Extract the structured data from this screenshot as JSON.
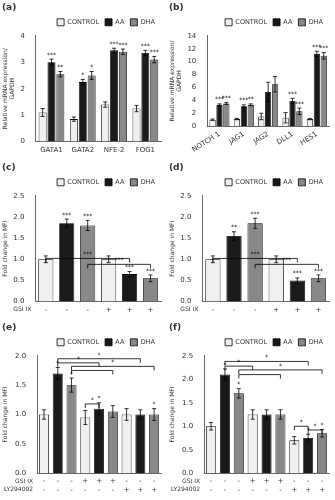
{
  "chart_data": [
    {
      "type": "bar",
      "title": "(a)",
      "categories": [
        "GATA1",
        "GATA2",
        "NFE-2",
        "FOG1"
      ],
      "series": [
        {
          "name": "CONTROL",
          "color": "#f0f0f0",
          "values": [
            1.1,
            0.85,
            1.4,
            1.25
          ],
          "errors": [
            0.15,
            0.08,
            0.1,
            0.12
          ]
        },
        {
          "name": "AA",
          "color": "#1a1a1a",
          "values": [
            3.0,
            2.25,
            3.45,
            3.35
          ],
          "errors": [
            0.12,
            0.1,
            0.08,
            0.1
          ],
          "stars": [
            "***",
            "*",
            "***",
            "***"
          ]
        },
        {
          "name": "DHA",
          "color": "#888888",
          "values": [
            2.55,
            2.5,
            3.4,
            3.1
          ],
          "errors": [
            0.1,
            0.15,
            0.1,
            0.12
          ],
          "stars": [
            "**",
            "*",
            "***",
            "***"
          ]
        }
      ],
      "ylabel": "Relative mRNA expression/\nGAPDH",
      "ylim": [
        0,
        4
      ],
      "yticks": [
        0,
        1,
        2,
        3,
        4
      ],
      "grid": false,
      "legend": "upper right"
    },
    {
      "type": "bar",
      "title": "(b)",
      "categories": [
        "NOTCH 1",
        "JAG1",
        "JAG2",
        "DLL1",
        "HES1"
      ],
      "series": [
        {
          "name": "CONTROL",
          "color": "#f0f0f0",
          "values": [
            1.0,
            1.1,
            1.5,
            1.3,
            1.1
          ],
          "errors": [
            0.1,
            0.1,
            0.5,
            0.8,
            0.1
          ]
        },
        {
          "name": "AA",
          "color": "#1a1a1a",
          "values": [
            3.3,
            3.1,
            5.3,
            3.9,
            11.2
          ],
          "errors": [
            0.15,
            0.2,
            1.5,
            0.4,
            0.4
          ],
          "stars": [
            "***",
            "***",
            null,
            "***",
            "***"
          ]
        },
        {
          "name": "DHA",
          "color": "#888888",
          "values": [
            3.5,
            3.3,
            6.5,
            2.3,
            10.9
          ],
          "errors": [
            0.15,
            0.15,
            1.2,
            0.5,
            0.5
          ],
          "stars": [
            "***",
            "**",
            null,
            "***",
            "***"
          ]
        }
      ],
      "ylabel": "Relative mRNA expression/\nGAPDH",
      "ylim": [
        0,
        14
      ],
      "yticks": [
        0,
        2,
        4,
        6,
        8,
        10,
        12,
        14
      ],
      "grid": false,
      "legend": "upper right"
    },
    {
      "type": "bar",
      "title": "(c)",
      "categories": [
        "-",
        "-",
        "-",
        "+",
        "+",
        "+"
      ],
      "category_rows": [
        "GSI IX"
      ],
      "series": [
        {
          "name": "CONTROL",
          "color": "#f0f0f0",
          "values": [
            1.0,
            null,
            null,
            1.0,
            null,
            null
          ],
          "errors": [
            0.08,
            null,
            null,
            0.08,
            null,
            null
          ]
        },
        {
          "name": "AA",
          "color": "#1a1a1a",
          "values": [
            null,
            1.85,
            null,
            null,
            0.65,
            null
          ],
          "errors": [
            null,
            0.1,
            null,
            null,
            0.06,
            null
          ],
          "stars": [
            null,
            "***",
            null,
            null,
            "***",
            null
          ]
        },
        {
          "name": "DHA",
          "color": "#888888",
          "values": [
            null,
            null,
            1.8,
            null,
            null,
            0.55
          ],
          "errors": [
            null,
            null,
            0.12,
            null,
            null,
            0.08
          ],
          "stars": [
            null,
            null,
            "***",
            null,
            null,
            "***"
          ]
        }
      ],
      "brackets": [
        {
          "from": 0,
          "to": 4,
          "y": 1.02,
          "text": "***"
        },
        {
          "from": 2,
          "to": 5,
          "y": 0.88,
          "text": "***"
        }
      ],
      "ylabel": "Fold change in MFI",
      "ylim": [
        0,
        2.5
      ],
      "yticks": [
        {
          "value": 0,
          "label": "0.0"
        },
        0.5,
        {
          "value": 1,
          "label": "1.0"
        },
        1.5,
        {
          "value": 2,
          "label": "2.0"
        },
        2.5
      ],
      "grid": false,
      "legend": "upper right"
    },
    {
      "type": "bar",
      "title": "(d)",
      "categories": [
        "-",
        "-",
        "-",
        "+",
        "+",
        "+"
      ],
      "category_rows": [
        "GSI IX"
      ],
      "series": [
        {
          "name": "CONTROL",
          "color": "#f0f0f0",
          "values": [
            1.0,
            null,
            null,
            1.0,
            null,
            null
          ],
          "errors": [
            0.08,
            null,
            null,
            0.08,
            null,
            null
          ]
        },
        {
          "name": "AA",
          "color": "#1a1a1a",
          "values": [
            null,
            1.55,
            null,
            null,
            0.5,
            null
          ],
          "errors": [
            null,
            0.1,
            null,
            null,
            0.06,
            null
          ],
          "stars": [
            null,
            "**",
            null,
            null,
            "***",
            null
          ]
        },
        {
          "name": "DHA",
          "color": "#888888",
          "values": [
            null,
            null,
            1.85,
            null,
            null,
            0.55
          ],
          "errors": [
            null,
            null,
            0.12,
            null,
            null,
            0.08
          ],
          "stars": [
            null,
            null,
            "***",
            null,
            null,
            "***"
          ]
        }
      ],
      "brackets": [
        {
          "from": 0,
          "to": 4,
          "y": 1.02,
          "text": "***"
        },
        {
          "from": 2,
          "to": 5,
          "y": 0.88,
          "text": "***"
        }
      ],
      "ylabel": "Fold change in MFI",
      "ylim": [
        0,
        2.5
      ],
      "yticks": [
        {
          "value": 0,
          "label": "0.0"
        },
        0.5,
        {
          "value": 1,
          "label": "1.0"
        },
        1.5,
        {
          "value": 2,
          "label": "2.0"
        },
        2.5
      ],
      "grid": false,
      "legend": "upper right"
    },
    {
      "type": "bar",
      "title": "(e)",
      "categories": [
        [
          "-",
          "-"
        ],
        [
          "-",
          "-"
        ],
        [
          "-",
          "-"
        ],
        [
          "+",
          "-"
        ],
        [
          "+",
          "-"
        ],
        [
          "+",
          "-"
        ],
        [
          "-",
          "+"
        ],
        [
          "-",
          "+"
        ],
        [
          "-",
          "+"
        ]
      ],
      "category_rows": [
        "GSI IX",
        "LY294002"
      ],
      "series": [
        {
          "name": "CONTROL",
          "color": "#f0f0f0",
          "values": [
            1.0,
            null,
            null,
            0.95,
            null,
            null,
            1.0,
            null,
            null
          ],
          "errors": [
            0.08,
            null,
            null,
            0.12,
            null,
            null,
            0.1,
            null,
            null
          ]
        },
        {
          "name": "AA",
          "color": "#1a1a1a",
          "values": [
            null,
            1.7,
            null,
            null,
            1.1,
            null,
            null,
            1.0,
            null
          ],
          "errors": [
            null,
            0.1,
            null,
            null,
            0.1,
            null,
            null,
            0.08,
            null
          ],
          "stars": [
            null,
            "*",
            null,
            null,
            "*",
            null,
            null,
            null,
            null
          ]
        },
        {
          "name": "DHA",
          "color": "#888888",
          "values": [
            null,
            null,
            1.5,
            null,
            null,
            1.05,
            null,
            null,
            1.0
          ],
          "errors": [
            null,
            null,
            0.12,
            null,
            null,
            0.1,
            null,
            null,
            0.1
          ],
          "stars": [
            null,
            null,
            "*",
            null,
            null,
            null,
            null,
            null,
            "*"
          ]
        }
      ],
      "brackets": [
        {
          "from": 1,
          "to": 4,
          "y": 1.88,
          "text": "*"
        },
        {
          "from": 2,
          "to": 5,
          "y": 1.75
        },
        {
          "from": 1,
          "to": 7,
          "y": 1.95,
          "text": "*"
        },
        {
          "from": 2,
          "to": 8,
          "y": 1.82,
          "text": "*"
        },
        {
          "from": 3,
          "to": 4,
          "y": 1.18,
          "text": "*"
        }
      ],
      "ylabel": "Fold change in MFI",
      "ylim": [
        0,
        2.0
      ],
      "yticks": [
        {
          "value": 0,
          "label": "0.0"
        },
        0.5,
        {
          "value": 1,
          "label": "1.0"
        },
        1.5,
        {
          "value": 2,
          "label": "2.0"
        }
      ],
      "grid": false,
      "legend": "upper right"
    },
    {
      "type": "bar",
      "title": "(f)",
      "categories": [
        [
          "-",
          "-"
        ],
        [
          "-",
          "-"
        ],
        [
          "-",
          "-"
        ],
        [
          "+",
          "-"
        ],
        [
          "+",
          "-"
        ],
        [
          "+",
          "-"
        ],
        [
          "-",
          "+"
        ],
        [
          "-",
          "+"
        ],
        [
          "-",
          "+"
        ]
      ],
      "category_rows": [
        "GSI IX",
        "LY294002"
      ],
      "series": [
        {
          "name": "CONTROL",
          "color": "#f0f0f0",
          "values": [
            1.0,
            null,
            null,
            1.25,
            null,
            null,
            0.7,
            null,
            null
          ],
          "errors": [
            0.08,
            null,
            null,
            0.1,
            null,
            null,
            0.08,
            null,
            null
          ]
        },
        {
          "name": "AA",
          "color": "#1a1a1a",
          "values": [
            null,
            2.1,
            null,
            null,
            1.25,
            null,
            null,
            0.75,
            null
          ],
          "errors": [
            null,
            0.12,
            null,
            null,
            0.1,
            null,
            null,
            0.08,
            null
          ],
          "stars": [
            null,
            "*",
            null,
            null,
            null,
            null,
            null,
            "*",
            null
          ]
        },
        {
          "name": "DHA",
          "color": "#888888",
          "values": [
            null,
            null,
            1.7,
            null,
            null,
            1.25,
            null,
            null,
            0.85
          ],
          "errors": [
            null,
            null,
            0.1,
            null,
            null,
            0.1,
            null,
            null,
            0.08
          ],
          "stars": [
            null,
            null,
            "*",
            null,
            null,
            null,
            null,
            null,
            "*"
          ]
        }
      ],
      "brackets": [
        {
          "from": 1,
          "to": 3,
          "y": 2.28,
          "text": "*"
        },
        {
          "from": 2,
          "to": 5,
          "y": 2.1
        },
        {
          "from": 1,
          "to": 7,
          "y": 2.38,
          "text": "*"
        },
        {
          "from": 2,
          "to": 8,
          "y": 2.2,
          "text": "*"
        },
        {
          "from": 6,
          "to": 7,
          "y": 1.0,
          "text": "*"
        },
        {
          "from": 7,
          "to": 8,
          "y": 0.92,
          "text": "*"
        }
      ],
      "ylabel": "Fold change in MFI",
      "ylim": [
        0,
        2.5
      ],
      "yticks": [
        {
          "value": 0,
          "label": "0.0"
        },
        0.5,
        {
          "value": 1,
          "label": "1.0"
        },
        1.5,
        {
          "value": 2,
          "label": "2.0"
        },
        2.5
      ],
      "grid": false,
      "legend": "upper right"
    }
  ]
}
